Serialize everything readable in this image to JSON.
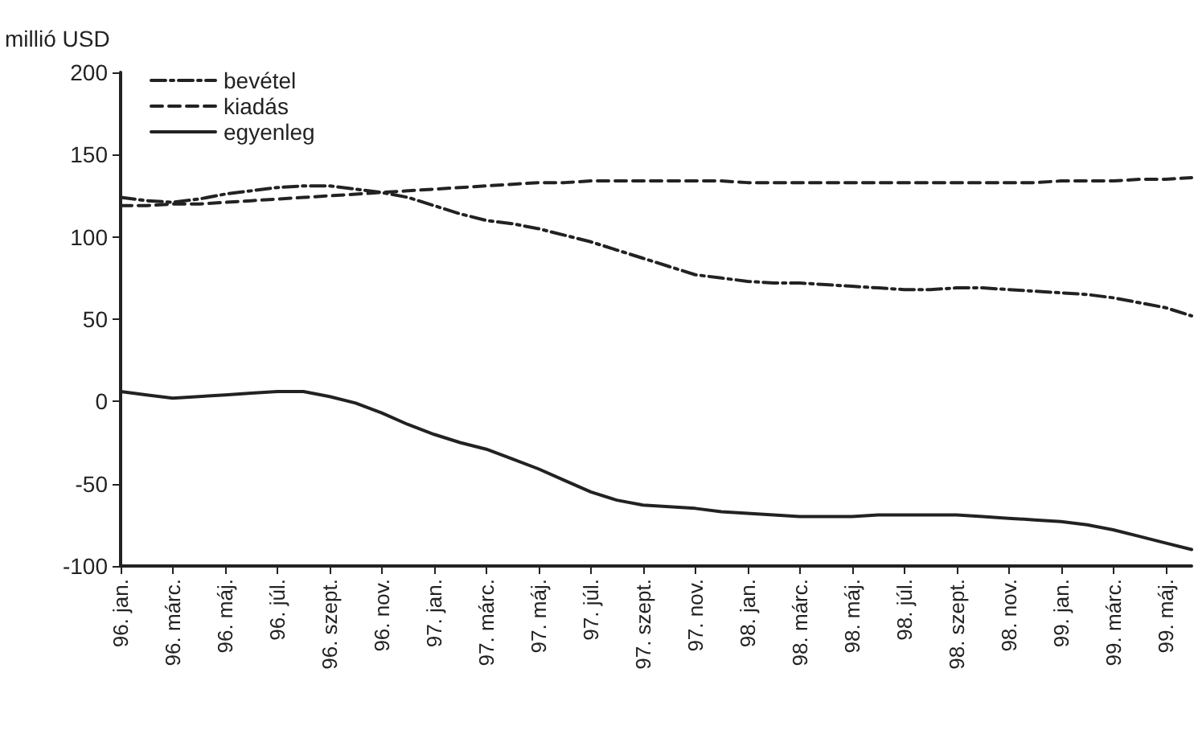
{
  "chart_data": {
    "type": "line",
    "ylabel": "millió USD",
    "categories": [
      "96. jan.",
      null,
      "96. márc.",
      null,
      "96. máj.",
      null,
      "96. júl.",
      null,
      "96. szept.",
      null,
      "96. nov.",
      null,
      "97. jan.",
      null,
      "97. márc.",
      null,
      "97. máj.",
      null,
      "97. júl.",
      null,
      "97. szept.",
      null,
      "97. nov.",
      null,
      "98. jan.",
      null,
      "98. márc.",
      null,
      "98. máj.",
      null,
      "98. júl.",
      null,
      "98. szept.",
      null,
      "98. nov.",
      null,
      "99. jan.",
      null,
      "99. márc.",
      null,
      "99. máj.",
      null
    ],
    "series": [
      {
        "name": "bevétel",
        "color": "#222222",
        "line_style": "dashdot",
        "values": [
          124,
          122,
          121,
          123,
          126,
          128,
          130,
          131,
          131,
          129,
          127,
          124,
          119,
          114,
          110,
          108,
          105,
          101,
          97,
          92,
          87,
          82,
          77,
          75,
          73,
          72,
          72,
          71,
          70,
          69,
          68,
          68,
          69,
          69,
          68,
          67,
          66,
          65,
          63,
          60,
          57,
          52
        ]
      },
      {
        "name": "kiadás",
        "color": "#222222",
        "line_style": "dashed",
        "values": [
          119,
          119,
          120,
          120,
          121,
          122,
          123,
          124,
          125,
          126,
          127,
          128,
          129,
          130,
          131,
          132,
          133,
          133,
          134,
          134,
          134,
          134,
          134,
          134,
          133,
          133,
          133,
          133,
          133,
          133,
          133,
          133,
          133,
          133,
          133,
          133,
          134,
          134,
          134,
          135,
          135,
          136
        ]
      },
      {
        "name": "egyenleg",
        "color": "#222222",
        "line_style": "solid",
        "values": [
          6,
          4,
          2,
          3,
          4,
          5,
          6,
          6,
          3,
          -1,
          -7,
          -14,
          -20,
          -25,
          -29,
          -35,
          -41,
          -48,
          -55,
          -60,
          -63,
          -64,
          -65,
          -67,
          -68,
          -69,
          -70,
          -70,
          -70,
          -69,
          -69,
          -69,
          -69,
          -70,
          -71,
          -72,
          -73,
          -75,
          -78,
          -82,
          -86,
          -90
        ]
      }
    ],
    "ylim": [
      -100,
      200
    ],
    "yticks": [
      -100,
      -50,
      0,
      50,
      100,
      150,
      200
    ],
    "grid": false,
    "legend": "top left",
    "marker": "none"
  }
}
